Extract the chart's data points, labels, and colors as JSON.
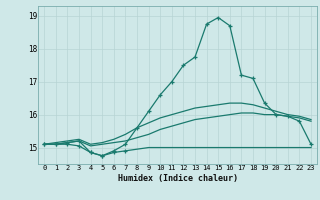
{
  "xlabel": "Humidex (Indice chaleur)",
  "bg_color": "#cfe8e8",
  "grid_color_major": "#b8d4d4",
  "grid_color_minor": "#ddeaea",
  "line_color": "#1a7a6e",
  "xlim": [
    -0.5,
    23.5
  ],
  "ylim": [
    14.5,
    19.3
  ],
  "yticks": [
    15,
    16,
    17,
    18,
    19
  ],
  "xticks": [
    0,
    1,
    2,
    3,
    4,
    5,
    6,
    7,
    8,
    9,
    10,
    11,
    12,
    13,
    14,
    15,
    16,
    17,
    18,
    19,
    20,
    21,
    22,
    23
  ],
  "series": [
    {
      "x": [
        0,
        1,
        2,
        3,
        4,
        5,
        6,
        7,
        8,
        9,
        10,
        11,
        12,
        13,
        14,
        15,
        16,
        17,
        18,
        19,
        20,
        21,
        22,
        23
      ],
      "y": [
        15.1,
        15.1,
        15.1,
        15.05,
        14.85,
        14.75,
        14.85,
        14.9,
        14.95,
        15.0,
        15.0,
        15.0,
        15.0,
        15.0,
        15.0,
        15.0,
        15.0,
        15.0,
        15.0,
        15.0,
        15.0,
        15.0,
        15.0,
        15.0
      ],
      "has_marker": true,
      "marker_indices": [
        0,
        1,
        2,
        3,
        4,
        5,
        6,
        7
      ]
    },
    {
      "x": [
        0,
        1,
        2,
        3,
        4,
        5,
        6,
        7,
        8,
        9,
        10,
        11,
        12,
        13,
        14,
        15,
        16,
        17,
        18,
        19,
        20,
        21,
        22,
        23
      ],
      "y": [
        15.1,
        15.1,
        15.15,
        15.2,
        15.05,
        15.1,
        15.15,
        15.2,
        15.3,
        15.4,
        15.55,
        15.65,
        15.75,
        15.85,
        15.9,
        15.95,
        16.0,
        16.05,
        16.05,
        16.0,
        16.0,
        15.95,
        15.9,
        15.8
      ],
      "has_marker": false
    },
    {
      "x": [
        0,
        1,
        2,
        3,
        4,
        5,
        6,
        7,
        8,
        9,
        10,
        11,
        12,
        13,
        14,
        15,
        16,
        17,
        18,
        19,
        20,
        21,
        22,
        23
      ],
      "y": [
        15.1,
        15.15,
        15.2,
        15.25,
        15.1,
        15.15,
        15.25,
        15.4,
        15.6,
        15.75,
        15.9,
        16.0,
        16.1,
        16.2,
        16.25,
        16.3,
        16.35,
        16.35,
        16.3,
        16.2,
        16.1,
        16.0,
        15.95,
        15.85
      ],
      "has_marker": false
    },
    {
      "x": [
        0,
        1,
        2,
        3,
        4,
        5,
        6,
        7,
        8,
        9,
        10,
        11,
        12,
        13,
        14,
        15,
        16,
        17,
        18,
        19,
        20,
        21,
        22,
        23
      ],
      "y": [
        15.1,
        15.1,
        15.15,
        15.2,
        14.85,
        14.75,
        14.9,
        15.1,
        15.6,
        16.1,
        16.6,
        17.0,
        17.5,
        17.75,
        18.75,
        18.95,
        18.7,
        17.2,
        17.1,
        16.35,
        16.0,
        15.95,
        15.8,
        15.1
      ],
      "has_marker": true,
      "marker_indices": [
        0,
        1,
        2,
        3,
        4,
        5,
        6,
        7,
        8,
        9,
        10,
        11,
        12,
        13,
        14,
        15,
        16,
        17,
        18,
        19,
        20,
        21,
        22,
        23
      ]
    }
  ]
}
